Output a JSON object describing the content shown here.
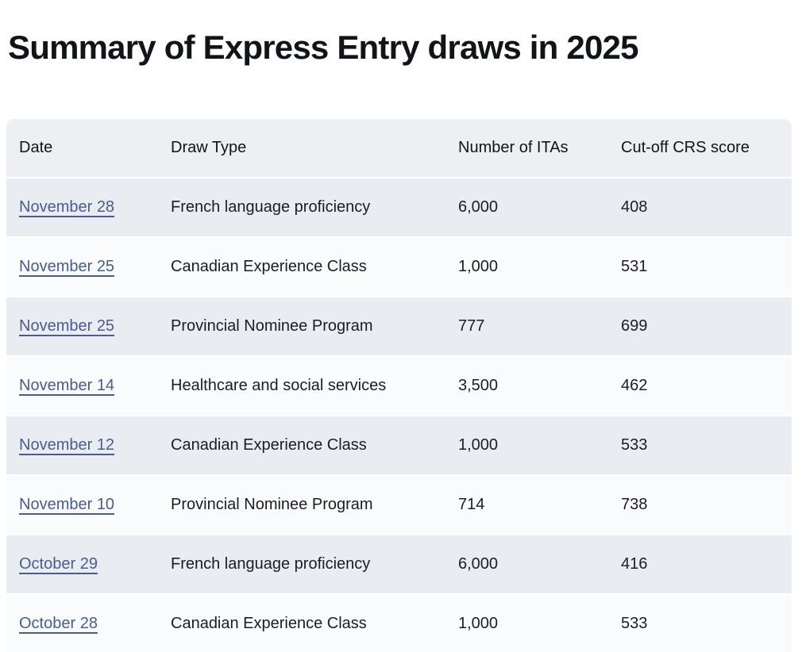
{
  "page": {
    "title": "Summary of Express Entry draws in 2025"
  },
  "table": {
    "columns": [
      "Date",
      "Draw Type",
      "Number of ITAs",
      "Cut-off CRS score"
    ],
    "rows": [
      {
        "date": "November 28",
        "draw_type": "French language proficiency",
        "itas": "6,000",
        "crs": "408"
      },
      {
        "date": "November 25",
        "draw_type": "Canadian Experience Class",
        "itas": "1,000",
        "crs": "531"
      },
      {
        "date": "November 25",
        "draw_type": "Provincial Nominee Program",
        "itas": "777",
        "crs": "699"
      },
      {
        "date": "November 14",
        "draw_type": "Healthcare and social services",
        "itas": "3,500",
        "crs": "462"
      },
      {
        "date": "November 12",
        "draw_type": "Canadian Experience Class",
        "itas": "1,000",
        "crs": "533"
      },
      {
        "date": "November 10",
        "draw_type": "Provincial Nominee Program",
        "itas": "714",
        "crs": "738"
      },
      {
        "date": "October 29",
        "draw_type": "French language proficiency",
        "itas": "6,000",
        "crs": "416"
      },
      {
        "date": "October 28",
        "draw_type": "Canadian Experience Class",
        "itas": "1,000",
        "crs": "533"
      }
    ]
  },
  "colors": {
    "link": "#485c91",
    "header_bg": "#edeff2",
    "row_alt_bg": "#e9edf2",
    "row_bg": "#fafbfc",
    "text": "#1a1e24",
    "text_strong": "#111418"
  }
}
